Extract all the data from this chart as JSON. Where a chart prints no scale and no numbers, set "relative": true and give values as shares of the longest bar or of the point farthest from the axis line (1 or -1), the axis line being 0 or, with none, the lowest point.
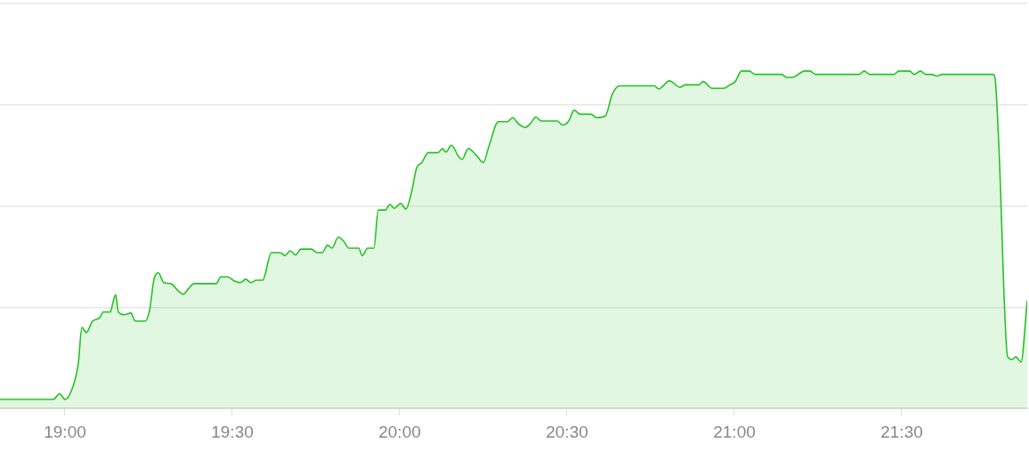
{
  "chart_data": {
    "type": "area",
    "relative": true,
    "grid": "y",
    "marker": "none",
    "xlim": [
      18.8059,
      21.875
    ],
    "xticks": [
      {
        "value": 19,
        "label": "19:00"
      },
      {
        "value": 19.5,
        "label": "19:30"
      },
      {
        "value": 20,
        "label": "20:00"
      },
      {
        "value": 20.5,
        "label": "20:30"
      },
      {
        "value": 21,
        "label": "21:00"
      },
      {
        "value": 21.5,
        "label": "21:30"
      }
    ],
    "series": [
      {
        "color": "#22c422",
        "x": [
          18.8059,
          18.9654,
          18.984,
          19.0,
          19.0266,
          19.0399,
          19.0505,
          19.0638,
          19.0824,
          19.1037,
          19.1144,
          19.1356,
          19.1436,
          19.1516,
          19.1596,
          19.1782,
          19.1968,
          19.2101,
          19.2394,
          19.2527,
          19.266,
          19.2793,
          19.2952,
          19.3165,
          19.3378,
          19.3537,
          19.3697,
          19.3856,
          19.4521,
          19.4654,
          19.4867,
          19.5053,
          19.5239,
          19.5399,
          19.5559,
          19.5718,
          19.5904,
          19.617,
          19.6436,
          19.6569,
          19.6729,
          19.6888,
          19.7048,
          19.7367,
          19.7527,
          19.7686,
          19.7846,
          19.7979,
          19.8165,
          19.8324,
          19.8484,
          19.8777,
          19.8883,
          19.9043,
          19.9229,
          19.9362,
          19.9574,
          19.9707,
          19.984,
          20.0027,
          20.0186,
          20.0346,
          20.0505,
          20.0665,
          20.0851,
          20.1144,
          20.1277,
          20.1383,
          20.1543,
          20.1755,
          20.1862,
          20.2048,
          20.2287,
          20.25,
          20.266,
          20.2952,
          20.3218,
          20.3378,
          20.3537,
          20.375,
          20.391,
          20.4069,
          20.4229,
          20.4707,
          20.4867,
          20.5053,
          20.5213,
          20.5399,
          20.5718,
          20.5878,
          20.6144,
          20.6356,
          20.6569,
          20.7606,
          20.7739,
          20.8059,
          20.8378,
          20.8537,
          20.8936,
          20.9069,
          20.9335,
          20.9681,
          20.9867,
          21.0027,
          21.0213,
          21.0452,
          21.0612,
          21.141,
          21.1569,
          21.1729,
          21.2101,
          21.2261,
          21.242,
          21.3723,
          21.3883,
          21.4043,
          21.4761,
          21.492,
          21.5239,
          21.5372,
          21.5559,
          21.5718,
          21.5878,
          21.6064,
          21.6197,
          21.7739,
          21.7793,
          21.7899,
          21.8165,
          21.8298,
          21.8404,
          21.8564,
          21.875
        ],
        "values": [
          0.027,
          0.027,
          0.044,
          0.027,
          0.073,
          0.133,
          0.24,
          0.225,
          0.259,
          0.269,
          0.286,
          0.286,
          0.315,
          0.337,
          0.286,
          0.278,
          0.283,
          0.259,
          0.259,
          0.291,
          0.383,
          0.402,
          0.373,
          0.37,
          0.349,
          0.339,
          0.356,
          0.37,
          0.37,
          0.39,
          0.39,
          0.378,
          0.373,
          0.383,
          0.373,
          0.38,
          0.38,
          0.462,
          0.462,
          0.453,
          0.467,
          0.455,
          0.472,
          0.472,
          0.462,
          0.462,
          0.484,
          0.475,
          0.508,
          0.496,
          0.475,
          0.475,
          0.453,
          0.475,
          0.475,
          0.588,
          0.588,
          0.605,
          0.593,
          0.608,
          0.591,
          0.637,
          0.712,
          0.729,
          0.758,
          0.758,
          0.77,
          0.76,
          0.78,
          0.748,
          0.738,
          0.77,
          0.751,
          0.729,
          0.775,
          0.85,
          0.85,
          0.862,
          0.845,
          0.833,
          0.845,
          0.864,
          0.852,
          0.852,
          0.84,
          0.852,
          0.884,
          0.872,
          0.872,
          0.862,
          0.867,
          0.932,
          0.956,
          0.956,
          0.947,
          0.971,
          0.952,
          0.959,
          0.959,
          0.969,
          0.949,
          0.949,
          0.959,
          0.969,
          1,
          1,
          0.99,
          0.99,
          0.981,
          0.981,
          1,
          1,
          0.99,
          0.99,
          1,
          0.99,
          0.99,
          1,
          1,
          0.99,
          1,
          0.99,
          0.99,
          0.985,
          0.99,
          0.99,
          0.976,
          0.787,
          0.153,
          0.145,
          0.153,
          0.138,
          0.32
        ]
      }
    ]
  }
}
